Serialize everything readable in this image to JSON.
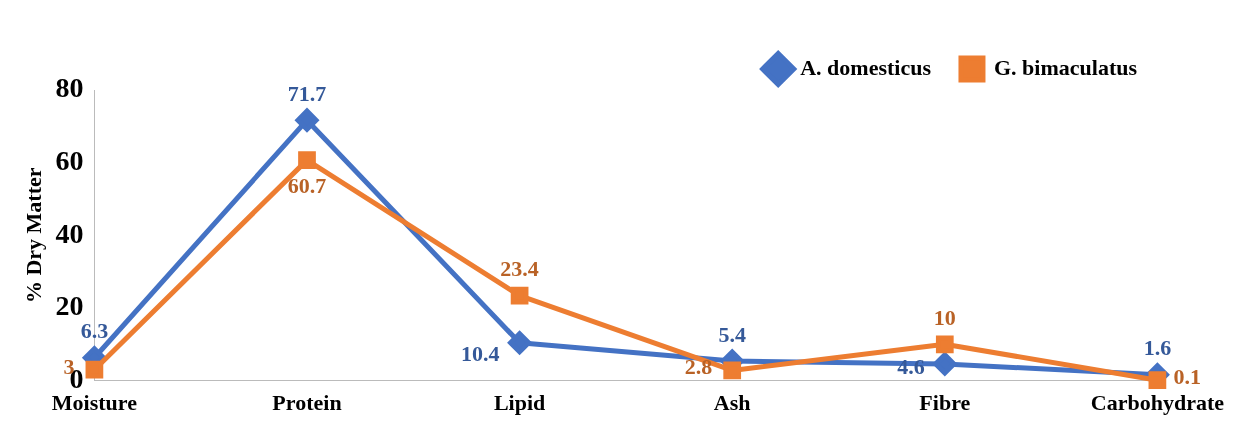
{
  "chart_data": {
    "type": "line",
    "ylabel": "% Dry Matter",
    "categories": [
      "Moisture",
      "Protein",
      "Lipid",
      "Ash",
      "Fibre",
      "Carbohydrate"
    ],
    "series": [
      {
        "name": "A. domesticus",
        "color": "#4472c4",
        "marker": "diamond",
        "values": [
          6.3,
          71.7,
          10.4,
          5.4,
          4.6,
          1.6
        ]
      },
      {
        "name": "G. bimaculatus",
        "color": "#ed7d31",
        "marker": "square",
        "values": [
          3,
          60.7,
          23.4,
          2.8,
          10,
          0.1
        ]
      }
    ],
    "ylim": [
      0,
      80
    ],
    "yticks": [
      0,
      20,
      40,
      60,
      80
    ],
    "grid": false,
    "legend": "top right",
    "data_labels": true,
    "line_style": "solid"
  }
}
